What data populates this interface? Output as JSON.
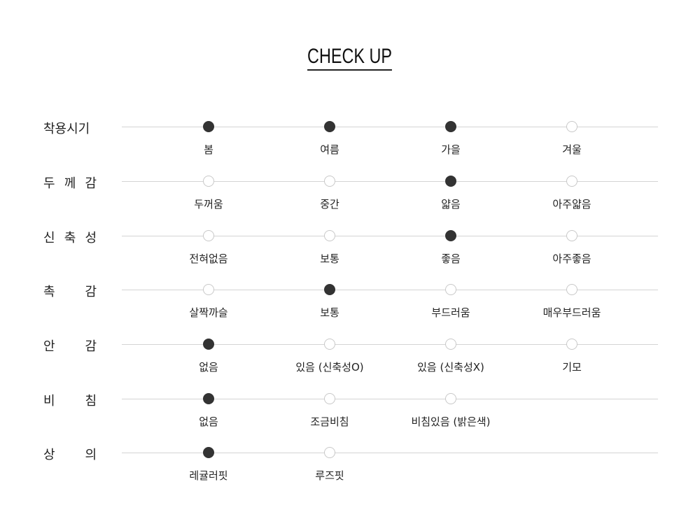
{
  "title": "CHECK UP",
  "colors": {
    "selected": "#333333",
    "unselected_border": "#c8c8c8",
    "line": "#d4d4d4"
  },
  "rows": [
    {
      "label": "착용시기",
      "options": [
        {
          "label": "봄",
          "selected": true
        },
        {
          "label": "여름",
          "selected": true
        },
        {
          "label": "가을",
          "selected": true
        },
        {
          "label": "겨울",
          "selected": false
        }
      ]
    },
    {
      "label": "두 께 감",
      "options": [
        {
          "label": "두꺼움",
          "selected": false
        },
        {
          "label": "중간",
          "selected": false
        },
        {
          "label": "얇음",
          "selected": true
        },
        {
          "label": "아주얇음",
          "selected": false
        }
      ]
    },
    {
      "label": "신 축 성",
      "options": [
        {
          "label": "전혀없음",
          "selected": false
        },
        {
          "label": "보통",
          "selected": false
        },
        {
          "label": "좋음",
          "selected": true
        },
        {
          "label": "아주좋음",
          "selected": false
        }
      ]
    },
    {
      "label": "촉 감",
      "options": [
        {
          "label": "살짝까슬",
          "selected": false
        },
        {
          "label": "보통",
          "selected": true
        },
        {
          "label": "부드러움",
          "selected": false
        },
        {
          "label": "매우부드러움",
          "selected": false
        }
      ]
    },
    {
      "label": "안 감",
      "options": [
        {
          "label": "없음",
          "selected": true
        },
        {
          "label": "있음 (신축성O)",
          "selected": false
        },
        {
          "label": "있음 (신축성X)",
          "selected": false
        },
        {
          "label": "기모",
          "selected": false
        }
      ]
    },
    {
      "label": "비 침",
      "options": [
        {
          "label": "없음",
          "selected": true
        },
        {
          "label": "조금비침",
          "selected": false
        },
        {
          "label": "비침있음 (밝은색)",
          "selected": false
        }
      ]
    },
    {
      "label": "상 의",
      "options": [
        {
          "label": "레귤러핏",
          "selected": true
        },
        {
          "label": "루즈핏",
          "selected": false
        }
      ]
    }
  ]
}
